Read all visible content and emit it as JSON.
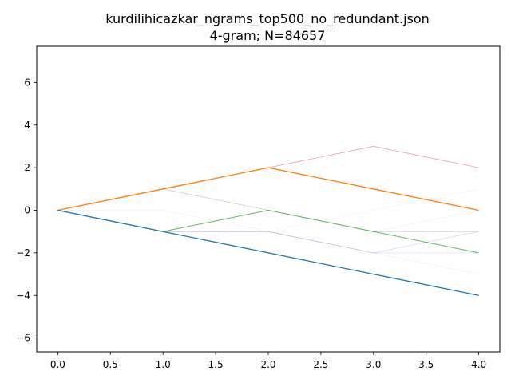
{
  "chart_data": {
    "type": "line",
    "title": "kurdilihicazkar_ngrams_top500_no_redundant.json",
    "subtitle": "4-gram; N=84657",
    "xlabel": "",
    "ylabel": "",
    "xlim": [
      -0.2,
      4.2
    ],
    "ylim": [
      -6.65,
      7.7
    ],
    "x_ticks": [
      0.0,
      0.5,
      1.0,
      1.5,
      2.0,
      2.5,
      3.0,
      3.5,
      4.0
    ],
    "x_tick_labels": [
      "0.0",
      "0.5",
      "1.0",
      "1.5",
      "2.0",
      "2.5",
      "3.0",
      "3.5",
      "4.0"
    ],
    "y_ticks": [
      -6,
      -4,
      -2,
      0,
      2,
      4,
      6
    ],
    "y_tick_labels": [
      "−6",
      "−4",
      "−2",
      "0",
      "2",
      "4",
      "6"
    ],
    "grid": false,
    "x": [
      0,
      1,
      2,
      3,
      4
    ],
    "series": [
      {
        "values": [
          0,
          1,
          2,
          3,
          2
        ],
        "color": "#d62728",
        "opacity": 0.45,
        "width": 0.8
      },
      {
        "values": [
          0,
          1,
          0,
          -1,
          -1
        ],
        "color": "#8c8c9a",
        "opacity": 0.5,
        "width": 0.6
      },
      {
        "values": [
          0,
          -1,
          -1,
          -2,
          -1
        ],
        "color": "#9467bd",
        "opacity": 0.4,
        "width": 0.6
      },
      {
        "values": [
          0,
          -1,
          -1,
          -2,
          -2
        ],
        "color": "#9467bd",
        "opacity": 0.3,
        "width": 0.6
      },
      {
        "values": [
          0,
          0,
          -1,
          -2,
          -3
        ],
        "color": "#b0b0c0",
        "opacity": 0.25,
        "width": 0.5
      },
      {
        "values": [
          0,
          1,
          0,
          -1,
          0
        ],
        "color": "#b0b0c0",
        "opacity": 0.2,
        "width": 0.5
      },
      {
        "values": [
          0,
          -1,
          -1,
          0,
          1
        ],
        "color": "#b0b0c0",
        "opacity": 0.15,
        "width": 0.5
      },
      {
        "values": [
          0,
          -1,
          0,
          -1,
          -2
        ],
        "color": "#2ca02c",
        "opacity": 0.75,
        "width": 1.0
      },
      {
        "values": [
          0,
          1,
          2,
          1,
          0
        ],
        "color": "#ff7f0e",
        "opacity": 1.0,
        "width": 1.3
      },
      {
        "values": [
          0,
          -1,
          -2,
          -3,
          -4
        ],
        "color": "#1f77b4",
        "opacity": 1.0,
        "width": 1.3
      }
    ]
  }
}
